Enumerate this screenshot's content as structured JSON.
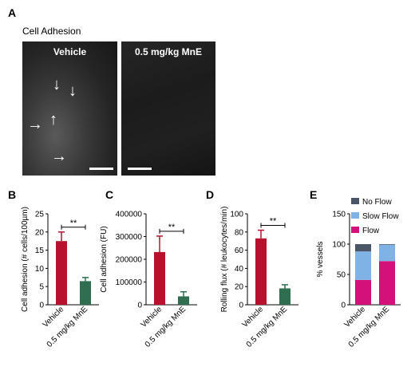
{
  "panel_a": {
    "letter": "A",
    "subtitle": "Cell Adhesion",
    "images": [
      {
        "label": "Vehicle"
      },
      {
        "label": "0.5 mg/kg MnE"
      }
    ]
  },
  "colors": {
    "vehicle": "#b8112e",
    "mne": "#2f6e4f",
    "no_flow": "#4a5568",
    "slow_flow": "#7fb3e6",
    "flow": "#d4117a"
  },
  "chart_data": [
    {
      "panel": "B",
      "type": "bar",
      "ylabel": "Cell adhesion (# cells/100µm)",
      "categories": [
        "Vehicle",
        "0.5 mg/kg MnE"
      ],
      "values": [
        17.5,
        6.5
      ],
      "errors": [
        2.5,
        1.0
      ],
      "ylim": [
        0,
        25
      ],
      "yticks": [
        0,
        5,
        10,
        15,
        20,
        25
      ],
      "significance": "**"
    },
    {
      "panel": "C",
      "type": "bar",
      "ylabel": "Cell adhesion (FU)",
      "categories": [
        "Vehicle",
        "0.5 mg/kg MnE"
      ],
      "values": [
        232000,
        37000
      ],
      "errors": [
        70000,
        20000
      ],
      "ylim": [
        0,
        400000
      ],
      "yticks": [
        0,
        100000,
        200000,
        300000,
        400000
      ],
      "significance": "**"
    },
    {
      "panel": "D",
      "type": "bar",
      "ylabel": "Rolling flux (# leukocytes/min)",
      "categories": [
        "Vehicle",
        "0.5 mg/kg MnE"
      ],
      "values": [
        73,
        18
      ],
      "errors": [
        9,
        4
      ],
      "ylim": [
        0,
        100
      ],
      "yticks": [
        0,
        20,
        40,
        60,
        80,
        100
      ],
      "significance": "**"
    },
    {
      "panel": "E",
      "type": "bar",
      "stacked": true,
      "ylabel": "% vessels",
      "categories": [
        "Vehicle",
        "0.5 mg/kg MnE"
      ],
      "series": [
        {
          "name": "Flow",
          "values": [
            41,
            72
          ]
        },
        {
          "name": "Slow Flow",
          "values": [
            47,
            27
          ]
        },
        {
          "name": "No Flow",
          "values": [
            12,
            1
          ]
        }
      ],
      "ylim": [
        0,
        150
      ],
      "yticks": [
        0,
        50,
        100,
        150
      ],
      "legend": [
        "No Flow",
        "Slow Flow",
        "Flow"
      ]
    }
  ]
}
